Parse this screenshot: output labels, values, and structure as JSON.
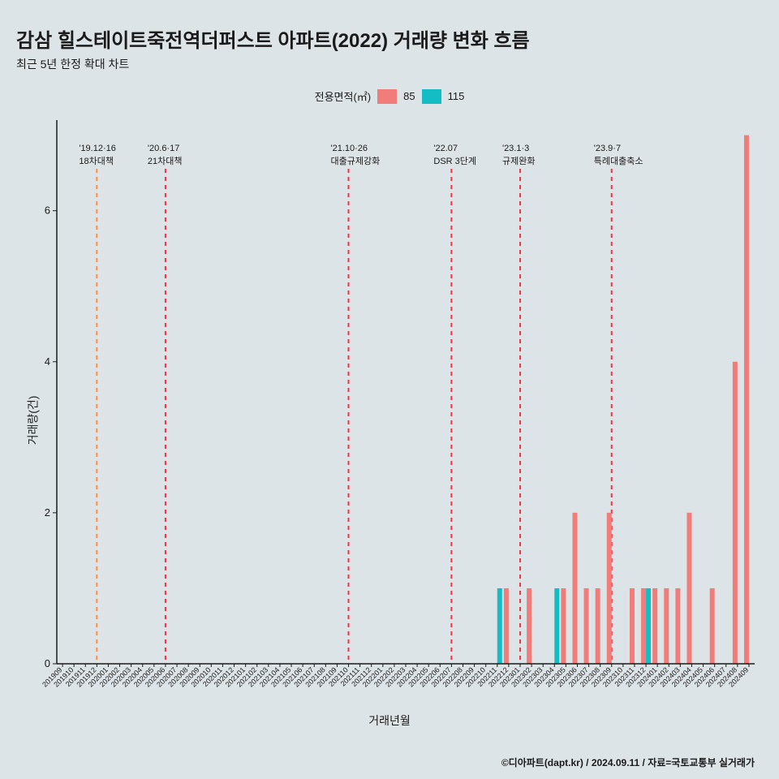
{
  "title": "감삼 힐스테이트죽전역더퍼스트 아파트(2022) 거래량 변화 흐름",
  "subtitle": "최근 5년 한정 확대 차트",
  "legend": {
    "title": "전용면적(㎡)",
    "items": [
      {
        "label": "85",
        "color": "#f07d79"
      },
      {
        "label": "115",
        "color": "#14bcc4"
      }
    ]
  },
  "chart": {
    "type": "bar",
    "background_color": "#dde4e7",
    "axis_color": "#1a1a1a",
    "y": {
      "label": "거래량(건)",
      "min": 0,
      "max": 7.2,
      "ticks": [
        0,
        2,
        4,
        6
      ]
    },
    "x": {
      "label": "거래년월",
      "categories": [
        "201909",
        "201910",
        "201911",
        "201912",
        "202001",
        "202002",
        "202003",
        "202004",
        "202005",
        "202006",
        "202007",
        "202008",
        "202009",
        "202010",
        "202011",
        "202012",
        "202101",
        "202102",
        "202103",
        "202104",
        "202105",
        "202106",
        "202107",
        "202108",
        "202109",
        "202110",
        "202111",
        "202112",
        "202201",
        "202202",
        "202203",
        "202204",
        "202205",
        "202206",
        "202207",
        "202208",
        "202209",
        "202210",
        "202211",
        "202212",
        "202301",
        "202302",
        "202303",
        "202304",
        "202305",
        "202306",
        "202307",
        "202308",
        "202309",
        "202310",
        "202311",
        "202312",
        "202401",
        "202402",
        "202403",
        "202404",
        "202405",
        "202406",
        "202407",
        "202408",
        "202409"
      ]
    },
    "series": [
      {
        "name": "85",
        "color": "#f07d79",
        "data": {
          "202212": 1,
          "202302": 1,
          "202305": 1,
          "202306": 2,
          "202307": 1,
          "202308": 1,
          "202309": 2,
          "202311": 1,
          "202312": 1,
          "202401": 1,
          "202402": 1,
          "202403": 1,
          "202404": 2,
          "202406": 1,
          "202408": 4,
          "202409": 7
        }
      },
      {
        "name": "115",
        "color": "#14bcc4",
        "data": {
          "202211": 1,
          "202304": 1,
          "202312": 1
        }
      }
    ],
    "vlines": [
      {
        "x": "201912",
        "color": "#ff8c42",
        "dash": "5,5",
        "label1": "'19.12·16",
        "label2": "18차대책"
      },
      {
        "x": "202006",
        "color": "#e63946",
        "dash": "5,5",
        "label1": "'20.6·17",
        "label2": "21차대책"
      },
      {
        "x": "202110",
        "color": "#e63946",
        "dash": "5,5",
        "label1": "'21.10·26",
        "label2": "대출규제강화"
      },
      {
        "x": "202207",
        "color": "#e63946",
        "dash": "5,5",
        "label1": "'22.07",
        "label2": "DSR 3단계"
      },
      {
        "x": "202301",
        "color": "#e63946",
        "dash": "5,5",
        "label1": "'23.1·3",
        "label2": "규제완화"
      },
      {
        "x": "202309",
        "color": "#e63946",
        "dash": "5,5",
        "label1": "'23.9·7",
        "label2": "특례대출축소"
      }
    ]
  },
  "credit": "©디아파트(dapt.kr) / 2024.09.11 / 자료=국토교통부 실거래가"
}
